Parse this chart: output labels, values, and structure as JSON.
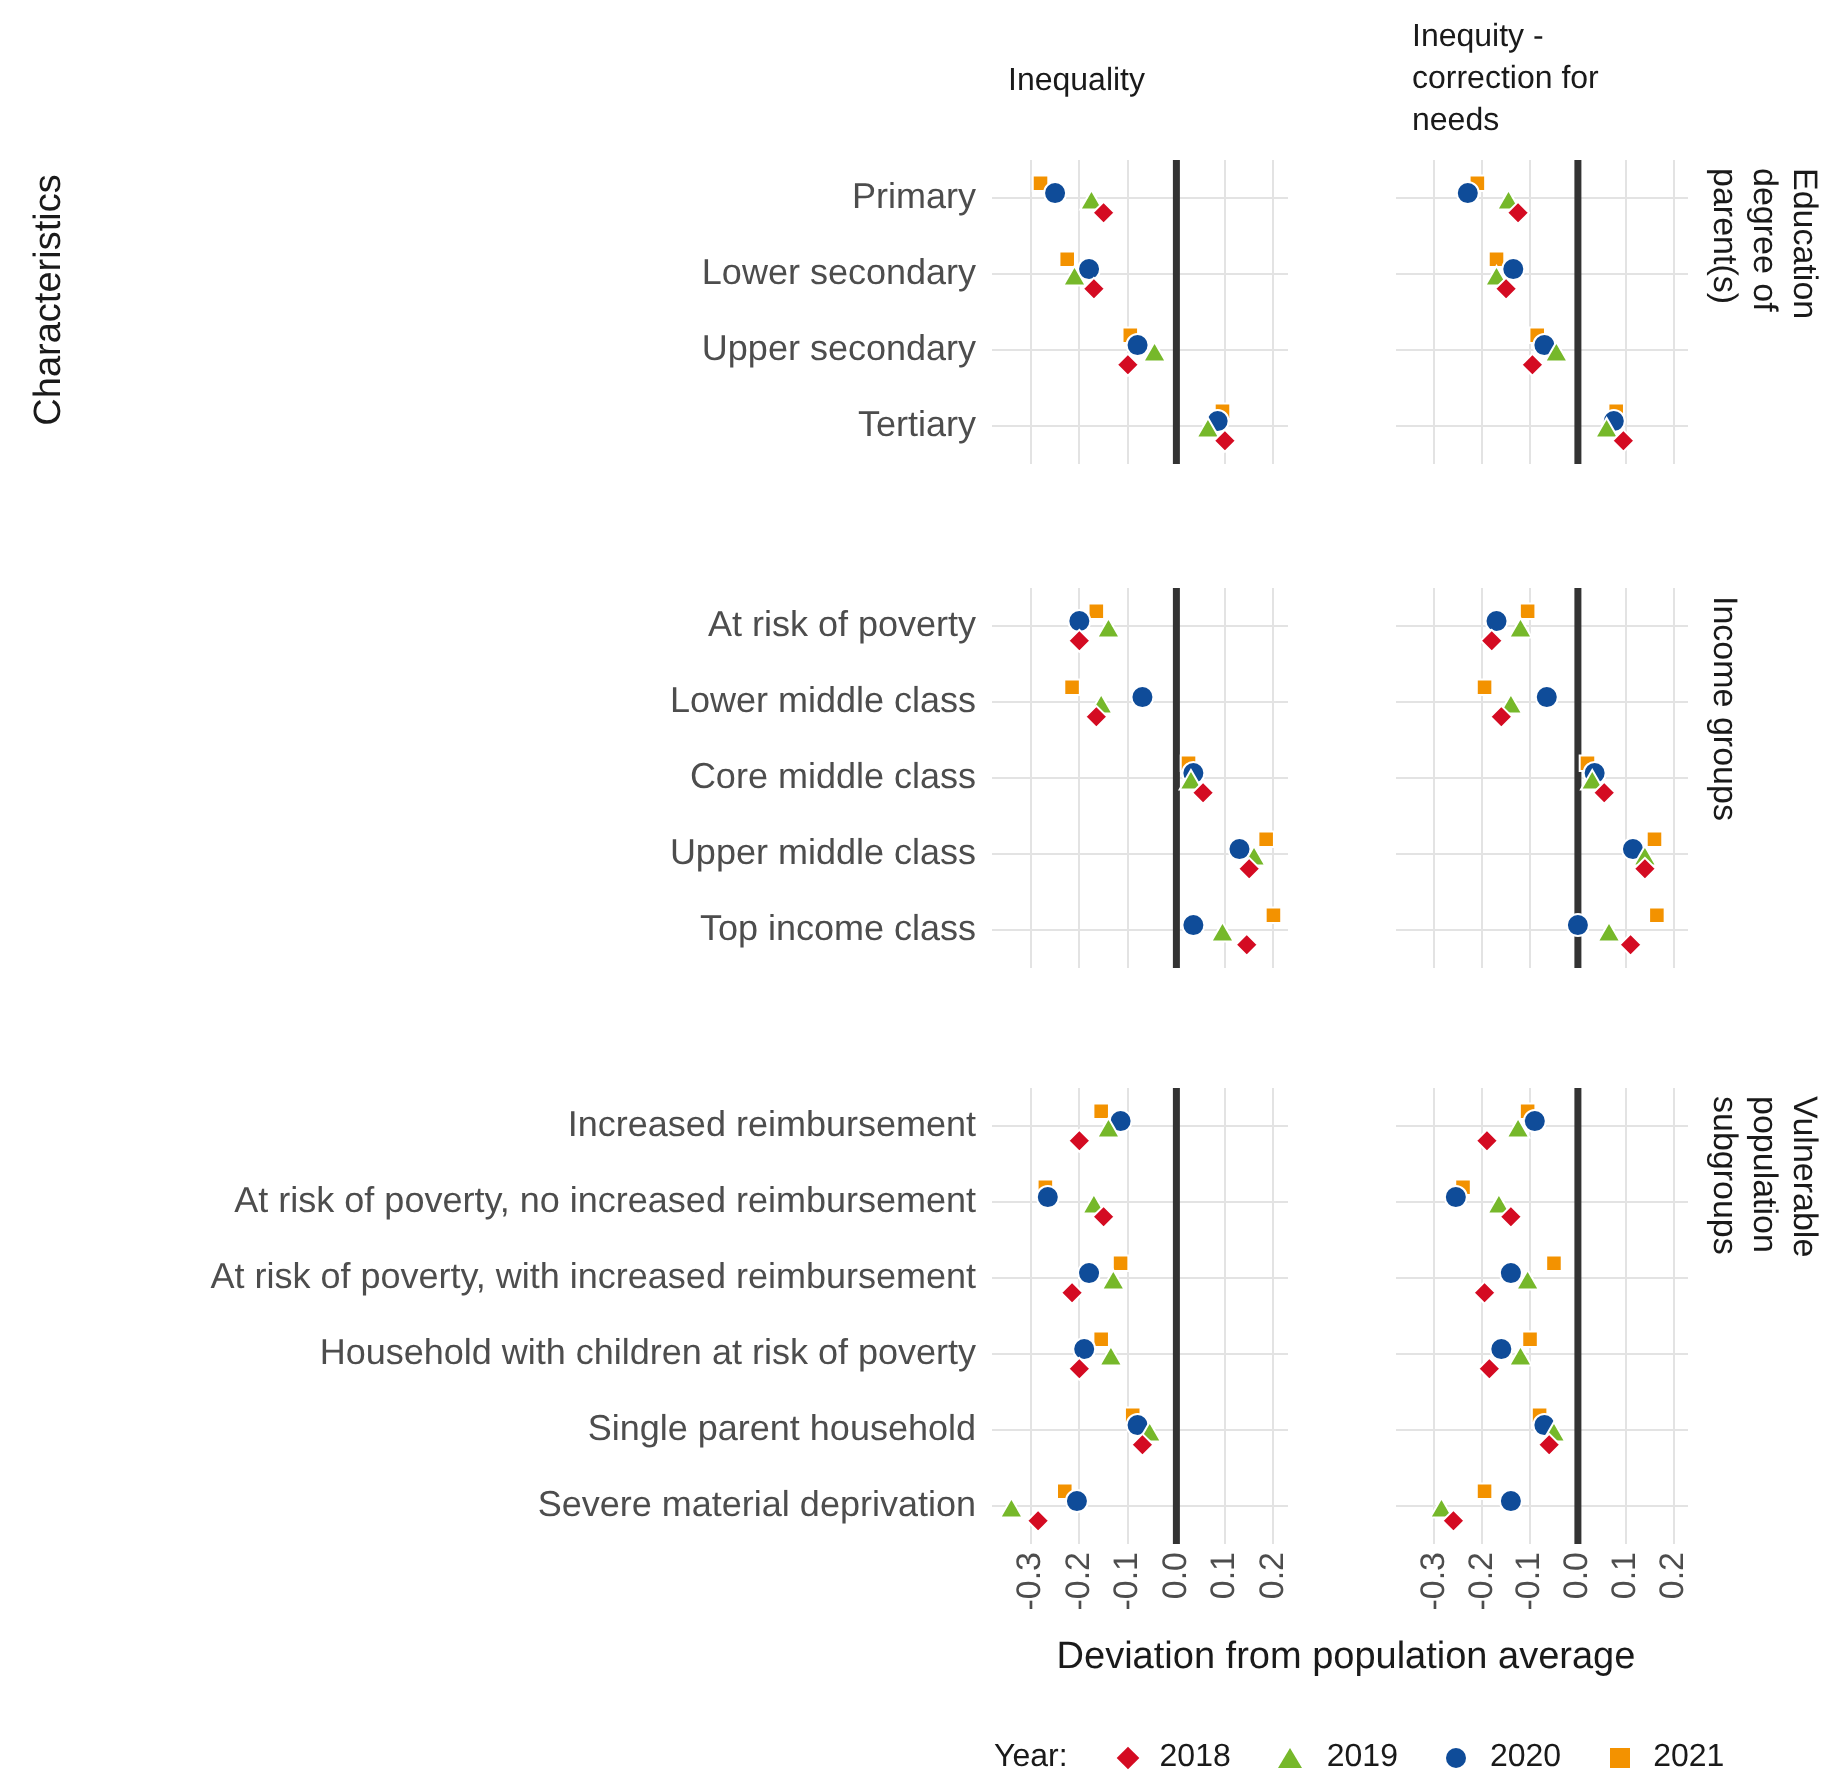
{
  "chart_data": [
    {
      "type": "scatter",
      "orientation": "horizontal",
      "title": "Inequality",
      "ylabel": "Characteristics",
      "categories": [
        "Primary",
        "Lower secondary",
        "Upper secondary",
        "Tertiary"
      ],
      "series": [
        {
          "color": "#d40b22",
          "marker": "diamond",
          "values": [
            -0.15,
            -0.17,
            -0.1,
            0.1
          ]
        },
        {
          "color": "#76b82a",
          "marker": "triangle",
          "values": [
            -0.175,
            -0.21,
            -0.045,
            0.065
          ]
        },
        {
          "color": "#0f4c99",
          "marker": "circle",
          "values": [
            -0.25,
            -0.18,
            -0.08,
            0.085
          ]
        },
        {
          "color": "#f39200",
          "marker": "square",
          "values": [
            -0.28,
            -0.225,
            -0.095,
            0.095
          ]
        }
      ],
      "xlim": [
        -0.38,
        0.23
      ],
      "xticks": [
        -0.3,
        -0.2,
        -0.1,
        0.1,
        0.2
      ],
      "grid": true,
      "tick_labels": "y",
      "ref_lines": [
        {
          "axis": "x",
          "value": 0,
          "color": "#333333"
        }
      ]
    },
    {
      "type": "scatter",
      "orientation": "horizontal",
      "title": "Inequity - correction for needs",
      "y2label": "Education degree of parent(s)",
      "categories": [
        null,
        null,
        null,
        null
      ],
      "series": [
        {
          "color": "#d40b22",
          "marker": "diamond",
          "values": [
            -0.125,
            -0.15,
            -0.095,
            0.095
          ]
        },
        {
          "color": "#76b82a",
          "marker": "triangle",
          "values": [
            -0.145,
            -0.17,
            -0.045,
            0.06
          ]
        },
        {
          "color": "#0f4c99",
          "marker": "circle",
          "values": [
            -0.23,
            -0.135,
            -0.07,
            0.075
          ]
        },
        {
          "color": "#f39200",
          "marker": "square",
          "values": [
            -0.21,
            -0.17,
            -0.085,
            0.08
          ]
        }
      ],
      "xlim": [
        -0.38,
        0.23
      ],
      "xticks": [
        -0.3,
        -0.2,
        -0.1,
        0.1,
        0.2
      ],
      "grid": true,
      "tick_labels": false,
      "ref_lines": [
        {
          "axis": "x",
          "value": 0,
          "color": "#333333"
        }
      ]
    },
    {
      "type": "scatter",
      "orientation": "horizontal",
      "categories": [
        "At risk of poverty",
        "Lower middle class",
        "Core middle class",
        "Upper middle class",
        "Top income class"
      ],
      "series": [
        {
          "color": "#d40b22",
          "marker": "diamond",
          "values": [
            -0.2,
            -0.165,
            0.055,
            0.15,
            0.145
          ]
        },
        {
          "color": "#76b82a",
          "marker": "triangle",
          "values": [
            -0.14,
            -0.155,
            0.03,
            0.16,
            0.095
          ]
        },
        {
          "color": "#0f4c99",
          "marker": "circle",
          "values": [
            -0.2,
            -0.07,
            0.035,
            0.13,
            0.035
          ]
        },
        {
          "color": "#f39200",
          "marker": "square",
          "values": [
            -0.165,
            -0.215,
            0.025,
            0.185,
            0.2
          ]
        }
      ],
      "xlim": [
        -0.38,
        0.23
      ],
      "xticks": [
        -0.3,
        -0.2,
        -0.1,
        0.1,
        0.2
      ],
      "grid": true,
      "tick_labels": "y",
      "ref_lines": [
        {
          "axis": "x",
          "value": 0,
          "color": "#333333"
        }
      ]
    },
    {
      "type": "scatter",
      "orientation": "horizontal",
      "y2label": "Income groups",
      "categories": [
        null,
        null,
        null,
        null,
        null
      ],
      "series": [
        {
          "color": "#d40b22",
          "marker": "diamond",
          "values": [
            -0.18,
            -0.16,
            0.055,
            0.14,
            0.11
          ]
        },
        {
          "color": "#76b82a",
          "marker": "triangle",
          "values": [
            -0.12,
            -0.14,
            0.03,
            0.14,
            0.065
          ]
        },
        {
          "color": "#0f4c99",
          "marker": "circle",
          "values": [
            -0.17,
            -0.065,
            0.035,
            0.115,
            0
          ]
        },
        {
          "color": "#f39200",
          "marker": "square",
          "values": [
            -0.105,
            -0.195,
            0.02,
            0.16,
            0.165
          ]
        }
      ],
      "xlim": [
        -0.38,
        0.23
      ],
      "xticks": [
        -0.3,
        -0.2,
        -0.1,
        0.1,
        0.2
      ],
      "grid": true,
      "tick_labels": false,
      "ref_lines": [
        {
          "axis": "x",
          "value": 0,
          "color": "#333333"
        }
      ]
    },
    {
      "type": "scatter",
      "orientation": "horizontal",
      "xlabel": "Deviation from population average",
      "legend": "bottom",
      "legend_title": "Year:",
      "categories": [
        "Increased reimbursement",
        "At risk of poverty, no increased reimbursement",
        "At risk of poverty, with increased reimbursement",
        "Household with children at risk of poverty",
        "Single parent household",
        "Severe material deprivation"
      ],
      "series": [
        {
          "name": "2018",
          "color": "#d40b22",
          "marker": "diamond",
          "values": [
            -0.2,
            -0.15,
            -0.215,
            -0.2,
            -0.07,
            -0.285
          ]
        },
        {
          "name": "2019",
          "color": "#76b82a",
          "marker": "triangle",
          "values": [
            -0.14,
            -0.17,
            -0.13,
            -0.135,
            -0.055,
            -0.34
          ]
        },
        {
          "name": "2020",
          "color": "#0f4c99",
          "marker": "circle",
          "values": [
            -0.115,
            -0.265,
            -0.18,
            -0.19,
            -0.08,
            -0.205
          ]
        },
        {
          "name": "2021",
          "color": "#f39200",
          "marker": "square",
          "values": [
            -0.155,
            -0.27,
            -0.115,
            -0.155,
            -0.09,
            -0.23
          ]
        }
      ],
      "xlim": [
        -0.38,
        0.23
      ],
      "xticks": [
        -0.3,
        -0.2,
        -0.1,
        {
          "value": 0,
          "label": "0.0"
        },
        0.1,
        0.2
      ],
      "grid": true,
      "ref_lines": [
        {
          "axis": "x",
          "value": 0,
          "color": "#333333"
        }
      ]
    },
    {
      "type": "scatter",
      "orientation": "horizontal",
      "y2label": "Vulnerable population subgroups",
      "categories": [
        null,
        null,
        null,
        null,
        null,
        null
      ],
      "series": [
        {
          "color": "#d40b22",
          "marker": "diamond",
          "values": [
            -0.19,
            -0.14,
            -0.195,
            -0.185,
            -0.06,
            -0.26
          ]
        },
        {
          "color": "#76b82a",
          "marker": "triangle",
          "values": [
            -0.125,
            -0.165,
            -0.105,
            -0.12,
            -0.05,
            -0.285
          ]
        },
        {
          "color": "#0f4c99",
          "marker": "circle",
          "values": [
            -0.09,
            -0.255,
            -0.14,
            -0.16,
            -0.07,
            -0.14
          ]
        },
        {
          "color": "#f39200",
          "marker": "square",
          "values": [
            -0.105,
            -0.24,
            -0.05,
            -0.1,
            -0.08,
            -0.195
          ]
        }
      ],
      "xlim": [
        -0.38,
        0.23
      ],
      "xticks": [
        -0.3,
        -0.2,
        -0.1,
        {
          "value": 0,
          "label": "0.0"
        },
        0.1,
        0.2
      ],
      "grid": true,
      "tick_labels": "x",
      "ref_lines": [
        {
          "axis": "x",
          "value": 0,
          "color": "#333333"
        }
      ]
    }
  ]
}
